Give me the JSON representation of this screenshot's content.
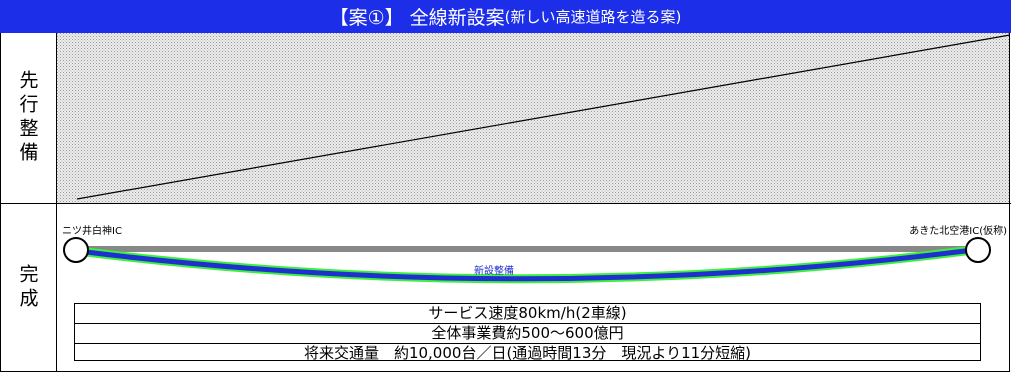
{
  "title": {
    "main": "【案①】 全線新設案",
    "sub": "(新しい高速道路を造る案)"
  },
  "rows": {
    "advance": {
      "label": "先行整備"
    },
    "complete": {
      "label": "完成"
    }
  },
  "route": {
    "start_ic": "ニツ井白神IC",
    "end_ic": "あきた北空港IC(仮称)",
    "new_section_label": "新設整備"
  },
  "info": {
    "service_speed": "サービス速度80km/h(2車線)",
    "total_cost": "全体事業費約500～600億円",
    "future_traffic": "将来交通量　約10,000台／日(通過時間13分　現況より11分短縮)"
  },
  "colors": {
    "title_bg": "#1d2ee8",
    "route_new": "#1f2fd0",
    "route_outline": "#3cf03c",
    "existing_road": "#888888"
  }
}
